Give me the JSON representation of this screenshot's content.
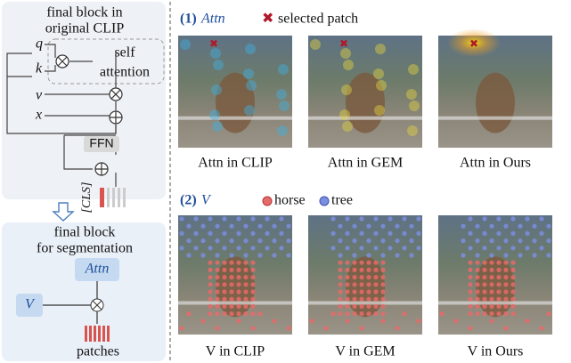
{
  "left": {
    "top_title": [
      "final block in",
      "original CLIP"
    ],
    "q": "q",
    "k": "k",
    "v": "v",
    "x": "x",
    "self_attention": [
      "self",
      "attention"
    ],
    "ffn": "FFN",
    "cls": "[CLS]",
    "bottom_title": [
      "final block",
      "for segmentation"
    ],
    "attn": "Attn",
    "v_token": "V",
    "patches": "patches"
  },
  "right": {
    "section1": {
      "number": "(1)",
      "label": "Attn",
      "legend": "selected patch",
      "captions": [
        "Attn in CLIP",
        "Attn in GEM",
        "Attn in Ours"
      ]
    },
    "section2": {
      "number": "(2)",
      "label": "V",
      "legend": [
        "horse",
        "tree"
      ],
      "captions": [
        "V in CLIP",
        "V in GEM",
        "V in Ours"
      ]
    }
  }
}
